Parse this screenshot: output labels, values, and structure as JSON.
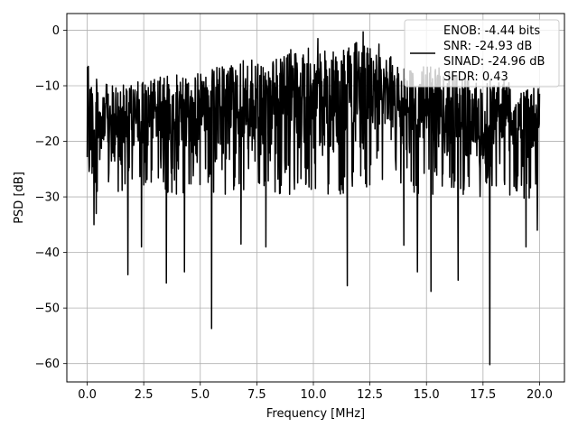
{
  "chart_data": {
    "type": "line",
    "title": "",
    "xlabel": "Frequency [MHz]",
    "ylabel": "PSD [dB]",
    "xlim": [
      -0.9,
      21.1
    ],
    "ylim": [
      -63.3,
      3.0
    ],
    "xticks": [
      0.0,
      2.5,
      5.0,
      7.5,
      10.0,
      12.5,
      15.0,
      17.5,
      20.0
    ],
    "xtick_labels": [
      "0.0",
      "2.5",
      "5.0",
      "7.5",
      "10.0",
      "12.5",
      "15.0",
      "17.5",
      "20.0"
    ],
    "yticks": [
      0,
      -10,
      -20,
      -30,
      -40,
      -50,
      -60
    ],
    "ytick_labels": [
      "0",
      "−10",
      "−20",
      "−30",
      "−40",
      "−50",
      "−60"
    ],
    "grid": true,
    "legend_position": "upper-right",
    "legend_lines": [
      "ENOB: -4.44 bits",
      "SNR: -24.93 dB",
      "SINAD: -24.96 dB",
      "SFDR: 0.43"
    ],
    "series": [
      {
        "color": "#000000",
        "x_range": [
          0.0,
          20.0
        ],
        "noise_floor_mean_db": -18,
        "noise_ceiling_db": [
          -12,
          -4
        ],
        "envelope": {
          "x": [
            0,
            0.5,
            1,
            2,
            3,
            4,
            5,
            6,
            7,
            8,
            9,
            10,
            11,
            12,
            13,
            14,
            15,
            16,
            17,
            18,
            19,
            20
          ],
          "upper": [
            -6.5,
            -9,
            -10,
            -9.5,
            -8.5,
            -8,
            -7.5,
            -6,
            -5.5,
            -5,
            -4,
            -3,
            -4,
            -2,
            -3.5,
            -6,
            -6.5,
            -7,
            -8,
            -8,
            -9,
            -10
          ],
          "lower": [
            -30,
            -29,
            -30,
            -29,
            -29,
            -30,
            -28,
            -30,
            -30,
            -29,
            -30,
            -29,
            -30,
            -29,
            -28,
            -30,
            -30,
            -29,
            -30,
            -30,
            -30,
            -31
          ]
        },
        "notable_dips": [
          {
            "x": 0.3,
            "y": -35
          },
          {
            "x": 0.4,
            "y": -33
          },
          {
            "x": 1.8,
            "y": -44
          },
          {
            "x": 2.4,
            "y": -39
          },
          {
            "x": 3.5,
            "y": -45.5
          },
          {
            "x": 4.3,
            "y": -43.5
          },
          {
            "x": 5.5,
            "y": -53.7
          },
          {
            "x": 6.8,
            "y": -38.5
          },
          {
            "x": 7.9,
            "y": -39
          },
          {
            "x": 11.5,
            "y": -46
          },
          {
            "x": 14.0,
            "y": -38.7
          },
          {
            "x": 14.6,
            "y": -43.5
          },
          {
            "x": 15.2,
            "y": -47
          },
          {
            "x": 16.4,
            "y": -45
          },
          {
            "x": 17.8,
            "y": -60.2
          },
          {
            "x": 19.4,
            "y": -39
          },
          {
            "x": 19.9,
            "y": -36
          }
        ],
        "notable_peaks": [
          {
            "x": 0.05,
            "y": -6.5
          },
          {
            "x": 6.9,
            "y": -5.5
          },
          {
            "x": 9.0,
            "y": -3.5
          },
          {
            "x": 10.2,
            "y": -1.5
          },
          {
            "x": 12.2,
            "y": -0.3
          },
          {
            "x": 12.9,
            "y": -2.5
          }
        ]
      }
    ]
  }
}
